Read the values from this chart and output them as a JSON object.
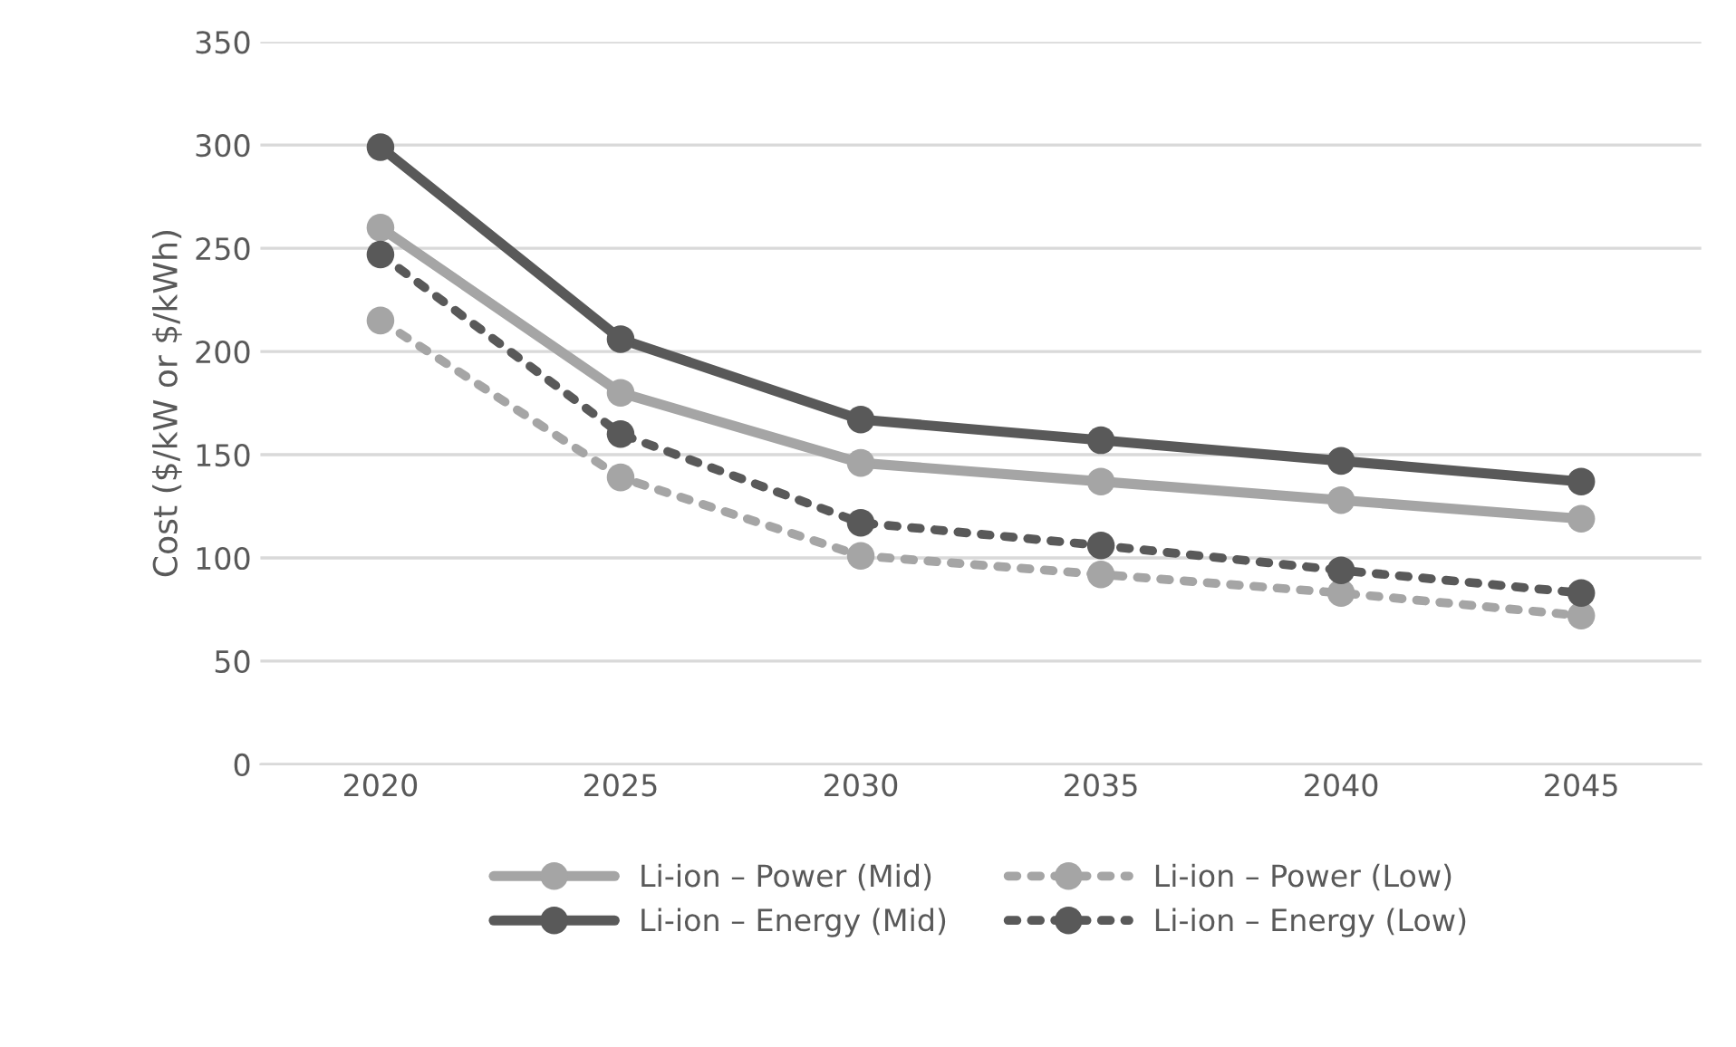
{
  "chart_data": {
    "type": "line",
    "ylabel": "Cost ($/kW or $/kWh)",
    "categories": [
      "2020",
      "2025",
      "2030",
      "2035",
      "2040",
      "2045"
    ],
    "ylim": [
      0,
      350
    ],
    "yticks": [
      0,
      50,
      100,
      150,
      200,
      250,
      300,
      350
    ],
    "grid": "y",
    "legend": "bottom",
    "marker": "circle",
    "series": [
      {
        "name": "Li-ion – Power (Mid)",
        "color": "#a5a5a5",
        "line_style": "solid",
        "values": [
          260,
          180,
          146,
          137,
          128,
          119
        ]
      },
      {
        "name": "Li-ion – Energy (Mid)",
        "color": "#595959",
        "line_style": "solid",
        "values": [
          299,
          206,
          167,
          157,
          147,
          137
        ]
      },
      {
        "name": "Li-ion – Power (Low)",
        "color": "#a5a5a5",
        "line_style": "dotted",
        "values": [
          215,
          139,
          101,
          92,
          83,
          72
        ]
      },
      {
        "name": "Li-ion – Energy (Low)",
        "color": "#595959",
        "line_style": "dotted",
        "values": [
          247,
          160,
          117,
          106,
          94,
          83
        ]
      }
    ]
  }
}
